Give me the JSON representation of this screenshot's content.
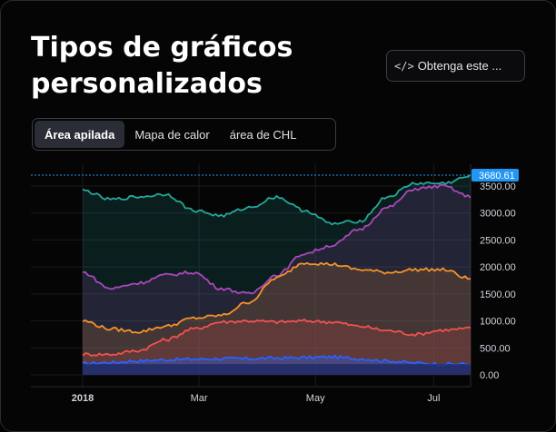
{
  "header": {
    "title_line1": "Tipos de gráficos",
    "title_line2": "personalizados",
    "code_button_icon": "</>",
    "code_button_label": "Obtenga este ..."
  },
  "tabs": [
    {
      "label": "Área apilada",
      "active": true
    },
    {
      "label": "Mapa de calor",
      "active": false
    },
    {
      "label": "área de CHL",
      "active": false
    }
  ],
  "colors": {
    "background": "#000000",
    "teal": "#26a69a",
    "purple": "#ab47bc",
    "orange": "#f5922a",
    "red": "#ef5350",
    "blue": "#2962ff",
    "price_label": "#2196f3"
  },
  "chart_data": {
    "type": "area",
    "stacked": true,
    "x_ticks": [
      "2018",
      "Mar",
      "May",
      "Jul"
    ],
    "y_ticks": [
      "3500.00",
      "3000.00",
      "2500.00",
      "2000.00",
      "1500.00",
      "1000.00",
      "500.00",
      "0.00"
    ],
    "ylim": [
      0,
      3500
    ],
    "last_value_label": "3680.61",
    "grid": true,
    "x": [
      "2018-01-01",
      "2018-01-15",
      "2018-02-01",
      "2018-02-15",
      "2018-03-01",
      "2018-03-15",
      "2018-04-01",
      "2018-04-15",
      "2018-05-01",
      "2018-05-15",
      "2018-06-01",
      "2018-06-15",
      "2018-07-01",
      "2018-07-15",
      "2018-07-30"
    ],
    "series": [
      {
        "color": "#2962ff",
        "values": [
          210,
          230,
          260,
          280,
          290,
          300,
          300,
          310,
          320,
          330,
          300,
          260,
          220,
          200,
          200
        ]
      },
      {
        "color": "#ef5350",
        "values": [
          380,
          380,
          450,
          650,
          850,
          980,
          1000,
          980,
          1000,
          980,
          900,
          820,
          750,
          830,
          860
        ]
      },
      {
        "color": "#f5922a",
        "values": [
          1000,
          850,
          800,
          900,
          1050,
          1100,
          1350,
          1800,
          2080,
          2050,
          1950,
          1900,
          1950,
          1950,
          1780
        ]
      },
      {
        "color": "#ab47bc",
        "values": [
          1900,
          1600,
          1700,
          1850,
          1900,
          1600,
          1500,
          1850,
          2250,
          2400,
          2700,
          3100,
          3450,
          3500,
          3300
        ]
      },
      {
        "color": "#26a69a",
        "values": [
          3420,
          3250,
          3300,
          3350,
          3050,
          2950,
          3100,
          3300,
          3050,
          2800,
          2850,
          3300,
          3550,
          3550,
          3680
        ]
      }
    ]
  }
}
